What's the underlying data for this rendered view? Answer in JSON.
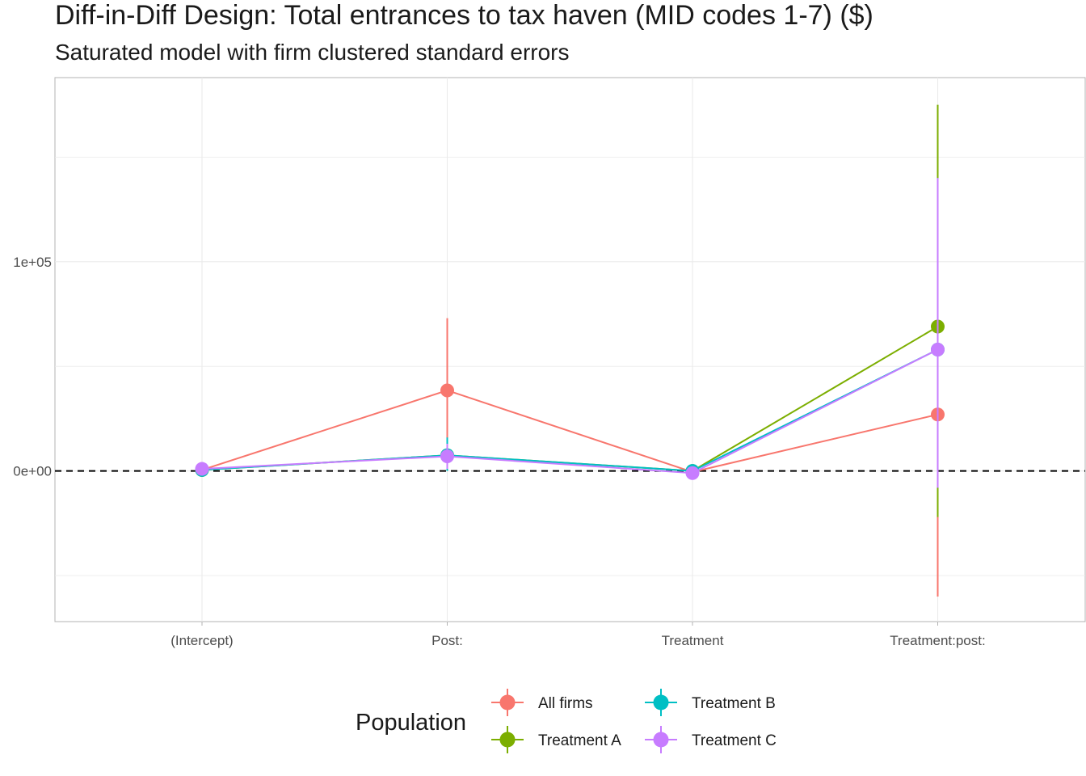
{
  "chart_data": {
    "type": "line",
    "title": "Diff-in-Diff Design: Total entrances to tax haven (MID codes 1-7)  ($)",
    "subtitle": "Saturated model with firm clustered standard errors",
    "xlabel": "",
    "ylabel": "",
    "categories": [
      "(Intercept)",
      "Post:",
      "Treatment",
      "Treatment:post:"
    ],
    "y_ticks": [
      {
        "value": 0,
        "label": "0e+00"
      },
      {
        "value": 100000,
        "label": "1e+05"
      }
    ],
    "ylim": [
      -72000,
      188000
    ],
    "reference_line": {
      "y": 0,
      "style": "dashed"
    },
    "grid": true,
    "legend": {
      "title": "Population",
      "position": "bottom"
    },
    "series": [
      {
        "name": "All firms",
        "color": "#F8766D",
        "values": [
          500,
          38500,
          -500,
          27000
        ],
        "lower": [
          0,
          13000,
          -1000,
          -60000
        ],
        "upper": [
          1000,
          73000,
          0,
          118000
        ]
      },
      {
        "name": "Treatment A",
        "color": "#7CAE00",
        "values": [
          500,
          7500,
          0,
          69000
        ],
        "lower": [
          0,
          1000,
          -1000,
          -22000
        ],
        "upper": [
          1000,
          14000,
          1000,
          175000
        ]
      },
      {
        "name": "Treatment B",
        "color": "#00BFC4",
        "values": [
          500,
          7500,
          0,
          58000
        ],
        "lower": [
          0,
          0,
          -1000,
          -8000
        ],
        "upper": [
          1000,
          16000,
          1000,
          140000
        ]
      },
      {
        "name": "Treatment C",
        "color": "#C77CFF",
        "values": [
          1000,
          7000,
          -1000,
          58000
        ],
        "lower": [
          0,
          1000,
          -2000,
          -8000
        ],
        "upper": [
          2000,
          13000,
          0,
          140000
        ]
      }
    ]
  }
}
